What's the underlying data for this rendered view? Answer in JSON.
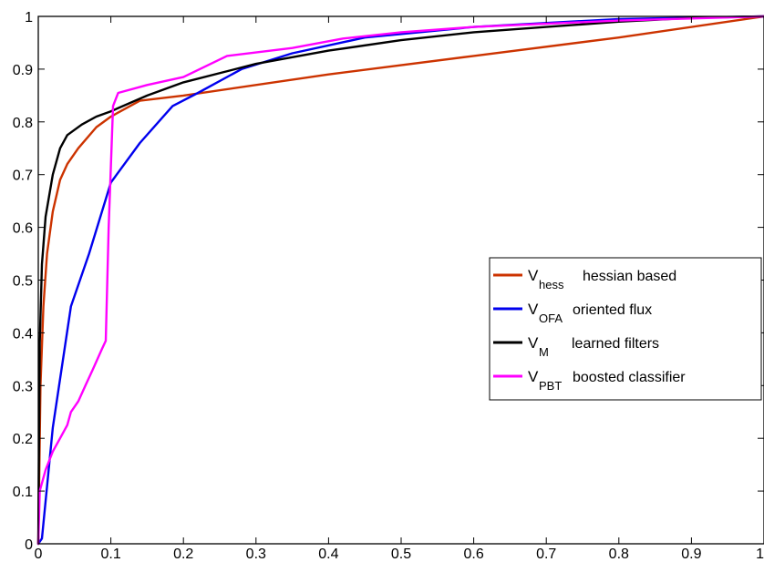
{
  "chart_data": {
    "type": "line",
    "title": "",
    "xlabel": "",
    "ylabel": "",
    "xlim": [
      0,
      1
    ],
    "ylim": [
      0,
      1
    ],
    "grid": false,
    "legend_position": "right",
    "x_ticks": [
      "0",
      "0.1",
      "0.2",
      "0.3",
      "0.4",
      "0.5",
      "0.6",
      "0.7",
      "0.8",
      "0.9",
      "1"
    ],
    "y_ticks": [
      "0",
      "0.1",
      "0.2",
      "0.3",
      "0.4",
      "0.5",
      "0.6",
      "0.7",
      "0.8",
      "0.9",
      "1"
    ],
    "series": [
      {
        "name": "V_hess hessian based",
        "symbol": "V",
        "subscript": "hess",
        "description": "hessian based",
        "color": "#cc3300",
        "points": [
          [
            0,
            0
          ],
          [
            0.003,
            0.3
          ],
          [
            0.007,
            0.45
          ],
          [
            0.012,
            0.55
          ],
          [
            0.02,
            0.63
          ],
          [
            0.03,
            0.69
          ],
          [
            0.04,
            0.72
          ],
          [
            0.055,
            0.75
          ],
          [
            0.08,
            0.79
          ],
          [
            0.1,
            0.81
          ],
          [
            0.14,
            0.84
          ],
          [
            0.2,
            0.85
          ],
          [
            0.4,
            0.89
          ],
          [
            0.6,
            0.925
          ],
          [
            0.8,
            0.96
          ],
          [
            1,
            1
          ]
        ]
      },
      {
        "name": "V_OFA oriented flux",
        "symbol": "V",
        "subscript": "OFA",
        "description": "oriented flux",
        "color": "#0000ee",
        "points": [
          [
            0,
            0
          ],
          [
            0.005,
            0.01
          ],
          [
            0.02,
            0.22
          ],
          [
            0.045,
            0.45
          ],
          [
            0.07,
            0.55
          ],
          [
            0.1,
            0.685
          ],
          [
            0.14,
            0.76
          ],
          [
            0.185,
            0.83
          ],
          [
            0.22,
            0.855
          ],
          [
            0.28,
            0.9
          ],
          [
            0.35,
            0.93
          ],
          [
            0.45,
            0.96
          ],
          [
            0.6,
            0.98
          ],
          [
            0.8,
            0.995
          ],
          [
            1,
            1
          ]
        ]
      },
      {
        "name": "V_M learned filters",
        "symbol": "V",
        "subscript": "M",
        "description": "learned filters",
        "color": "#000000",
        "points": [
          [
            0,
            0
          ],
          [
            0.002,
            0.38
          ],
          [
            0.005,
            0.53
          ],
          [
            0.01,
            0.62
          ],
          [
            0.02,
            0.7
          ],
          [
            0.03,
            0.75
          ],
          [
            0.04,
            0.775
          ],
          [
            0.06,
            0.795
          ],
          [
            0.08,
            0.81
          ],
          [
            0.1,
            0.82
          ],
          [
            0.15,
            0.85
          ],
          [
            0.2,
            0.875
          ],
          [
            0.3,
            0.91
          ],
          [
            0.4,
            0.935
          ],
          [
            0.5,
            0.955
          ],
          [
            0.6,
            0.97
          ],
          [
            0.7,
            0.98
          ],
          [
            0.8,
            0.99
          ],
          [
            0.9,
            0.997
          ],
          [
            1,
            1
          ]
        ]
      },
      {
        "name": "V_PBT boosted classifier",
        "symbol": "V",
        "subscript": "PBT",
        "description": "boosted classifier",
        "color": "#ff00ff",
        "points": [
          [
            0,
            0
          ],
          [
            0.002,
            0.1
          ],
          [
            0.01,
            0.14
          ],
          [
            0.02,
            0.175
          ],
          [
            0.03,
            0.2
          ],
          [
            0.04,
            0.225
          ],
          [
            0.045,
            0.25
          ],
          [
            0.055,
            0.27
          ],
          [
            0.065,
            0.3
          ],
          [
            0.075,
            0.33
          ],
          [
            0.088,
            0.37
          ],
          [
            0.093,
            0.385
          ],
          [
            0.097,
            0.6
          ],
          [
            0.103,
            0.83
          ],
          [
            0.11,
            0.855
          ],
          [
            0.15,
            0.87
          ],
          [
            0.2,
            0.885
          ],
          [
            0.26,
            0.925
          ],
          [
            0.35,
            0.94
          ],
          [
            0.42,
            0.958
          ],
          [
            0.5,
            0.97
          ],
          [
            0.6,
            0.98
          ],
          [
            0.8,
            0.992
          ],
          [
            1,
            1
          ]
        ]
      }
    ]
  }
}
